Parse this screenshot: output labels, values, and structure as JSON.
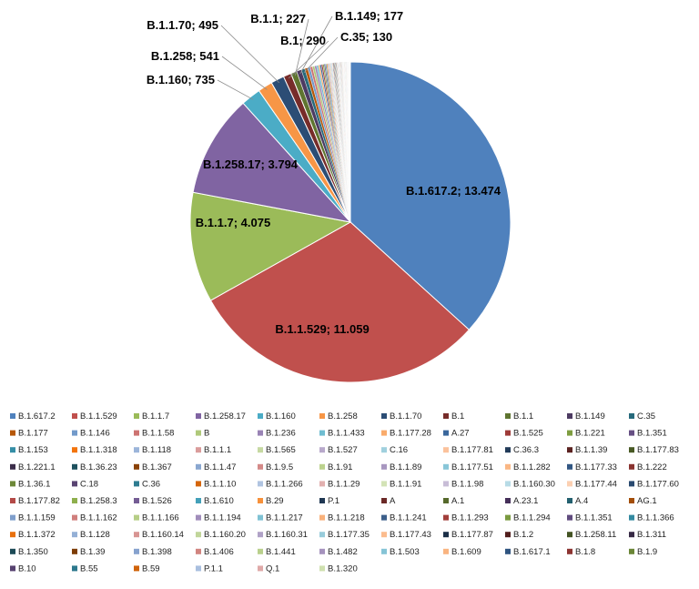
{
  "chart_data": {
    "type": "pie",
    "title": "",
    "legend_position": "bottom",
    "slices": [
      {
        "label": "B.1.617.2",
        "value": 13474,
        "display": "B.1.617.2; 13.474",
        "color": "#4F81BD"
      },
      {
        "label": "B.1.1.529",
        "value": 11059,
        "display": "B.1.1.529; 11.059",
        "color": "#C0504D"
      },
      {
        "label": "B.1.1.7",
        "value": 4075,
        "display": "B.1.1.7; 4.075",
        "color": "#9BBB59"
      },
      {
        "label": "B.1.258.17",
        "value": 3794,
        "display": "B.1.258.17; 3.794",
        "color": "#8064A2"
      },
      {
        "label": "B.1.160",
        "value": 735,
        "display": "B.1.160; 735",
        "color": "#4BACC6"
      },
      {
        "label": "B.1.258",
        "value": 541,
        "display": "B.1.258; 541",
        "color": "#F79646"
      },
      {
        "label": "B.1.1.70",
        "value": 495,
        "display": "B.1.1.70; 495",
        "color": "#2C4D75"
      },
      {
        "label": "B.1",
        "value": 290,
        "display": "B.1; 290",
        "color": "#772C2A"
      },
      {
        "label": "B.1.1",
        "value": 227,
        "display": "B.1.1; 227",
        "color": "#5F7530"
      },
      {
        "label": "B.1.149",
        "value": 177,
        "display": "B.1.149; 177",
        "color": "#4D3B62"
      },
      {
        "label": "C.35",
        "value": 130,
        "display": "C.35; 130",
        "color": "#276A7C"
      },
      {
        "label": "B.1.177",
        "value": 110,
        "display": "",
        "color": "#B65708"
      },
      {
        "label": "B.1.146",
        "value": 95,
        "display": "",
        "color": "#729ACA"
      },
      {
        "label": "B.1.1.58",
        "value": 85,
        "display": "",
        "color": "#CD7371"
      },
      {
        "label": "B",
        "value": 78,
        "display": "",
        "color": "#AFC97A"
      },
      {
        "label": "B.1.236",
        "value": 72,
        "display": "",
        "color": "#9983B5"
      },
      {
        "label": "B.1.1.433",
        "value": 66,
        "display": "",
        "color": "#6FBDD1"
      },
      {
        "label": "B.1.177.28",
        "value": 60,
        "display": "",
        "color": "#F9AB6B"
      },
      {
        "label": "A.27",
        "value": 56,
        "display": "",
        "color": "#3A679C"
      },
      {
        "label": "B.1.525",
        "value": 52,
        "display": "",
        "color": "#9E3B38"
      },
      {
        "label": "B.1.221",
        "value": 48,
        "display": "",
        "color": "#7E9D40"
      },
      {
        "label": "B.1.351",
        "value": 45,
        "display": "",
        "color": "#664F83"
      },
      {
        "label": "B.1.153",
        "value": 42,
        "display": "",
        "color": "#358EA6"
      },
      {
        "label": "B.1.1.318",
        "value": 40,
        "display": "",
        "color": "#F3740C"
      },
      {
        "label": "B.1.118",
        "value": 37,
        "display": "",
        "color": "#9CB5DA"
      },
      {
        "label": "B.1.1.1",
        "value": 35,
        "display": "",
        "color": "#DA9C9B"
      },
      {
        "label": "B.1.565",
        "value": 33,
        "display": "",
        "color": "#C6D9A2"
      },
      {
        "label": "B.1.527",
        "value": 31,
        "display": "",
        "color": "#B8A9CB"
      },
      {
        "label": "C.16",
        "value": 30,
        "display": "",
        "color": "#A0D0DE"
      },
      {
        "label": "B.1.177.81",
        "value": 28,
        "display": "",
        "color": "#FBC29C"
      },
      {
        "label": "C.36.3",
        "value": 27,
        "display": "",
        "color": "#223B59"
      },
      {
        "label": "B.1.1.39",
        "value": 26,
        "display": "",
        "color": "#5B2220"
      },
      {
        "label": "B.1.177.83",
        "value": 25,
        "display": "",
        "color": "#485924"
      },
      {
        "label": "B.1.221.1",
        "value": 24,
        "display": "",
        "color": "#3B2D4A"
      },
      {
        "label": "B.1.36.23",
        "value": 23,
        "display": "",
        "color": "#1E515E"
      },
      {
        "label": "B.1.367",
        "value": 22,
        "display": "",
        "color": "#8A4206"
      },
      {
        "label": "B.1.1.47",
        "value": 21,
        "display": "",
        "color": "#8AA7D0"
      },
      {
        "label": "B.1.9.5",
        "value": 20,
        "display": "",
        "color": "#D48A88"
      },
      {
        "label": "B.1.91",
        "value": 19,
        "display": "",
        "color": "#BCD28E"
      },
      {
        "label": "B.1.1.89",
        "value": 18,
        "display": "",
        "color": "#A897C0"
      },
      {
        "label": "B.1.177.51",
        "value": 18,
        "display": "",
        "color": "#88C6D8"
      },
      {
        "label": "B.1.1.282",
        "value": 17,
        "display": "",
        "color": "#FAB784"
      },
      {
        "label": "B.1.177.33",
        "value": 16,
        "display": "",
        "color": "#325783"
      },
      {
        "label": "B.1.222",
        "value": 16,
        "display": "",
        "color": "#8A3330"
      },
      {
        "label": "B.1.36.1",
        "value": 15,
        "display": "",
        "color": "#6D8838"
      },
      {
        "label": "C.18",
        "value": 15,
        "display": "",
        "color": "#594472"
      },
      {
        "label": "C.36",
        "value": 14,
        "display": "",
        "color": "#2E7C91"
      },
      {
        "label": "B.1.1.10",
        "value": 14,
        "display": "",
        "color": "#D5650A"
      },
      {
        "label": "B.1.1.266",
        "value": 13,
        "display": "",
        "color": "#B0C4E1"
      },
      {
        "label": "B.1.1.29",
        "value": 13,
        "display": "",
        "color": "#E2B0AF"
      },
      {
        "label": "B.1.1.91",
        "value": 12,
        "display": "",
        "color": "#D3E3B6"
      },
      {
        "label": "B.1.1.98",
        "value": 12,
        "display": "",
        "color": "#C8BDD7"
      },
      {
        "label": "B.1.160.30",
        "value": 11,
        "display": "",
        "color": "#B7DBE6"
      },
      {
        "label": "B.1.177.44",
        "value": 11,
        "display": "",
        "color": "#FCD0B2"
      },
      {
        "label": "B.1.177.60",
        "value": 10,
        "display": "",
        "color": "#2A4A70"
      },
      {
        "label": "B.1.177.82",
        "value": 10,
        "display": "",
        "color": "#B34A47"
      },
      {
        "label": "B.1.258.3",
        "value": 10,
        "display": "",
        "color": "#8EAF4D"
      },
      {
        "label": "B.1.526",
        "value": 9,
        "display": "",
        "color": "#745C94"
      },
      {
        "label": "B.1.610",
        "value": 9,
        "display": "",
        "color": "#43A0B9"
      },
      {
        "label": "B.29",
        "value": 9,
        "display": "",
        "color": "#F7913B"
      },
      {
        "label": "P.1",
        "value": 8,
        "display": "",
        "color": "#1F3752"
      },
      {
        "label": "A",
        "value": 8,
        "display": "",
        "color": "#6B2927"
      },
      {
        "label": "A.1",
        "value": 8,
        "display": "",
        "color": "#56692B"
      },
      {
        "label": "A.23.1",
        "value": 7,
        "display": "",
        "color": "#452F59"
      },
      {
        "label": "A.4",
        "value": 7,
        "display": "",
        "color": "#23606F"
      },
      {
        "label": "AG.1",
        "value": 7,
        "display": "",
        "color": "#A34E07"
      },
      {
        "label": "B.1.1.159",
        "value": 6,
        "display": "",
        "color": "#7F9FCC"
      },
      {
        "label": "B.1.1.162",
        "value": 6,
        "display": "",
        "color": "#D07F7D"
      },
      {
        "label": "B.1.1.166",
        "value": 6,
        "display": "",
        "color": "#B6CE86"
      },
      {
        "label": "B.1.1.194",
        "value": 6,
        "display": "",
        "color": "#A18DBB"
      },
      {
        "label": "B.1.1.217",
        "value": 5,
        "display": "",
        "color": "#7FC2D4"
      },
      {
        "label": "B.1.1.218",
        "value": 5,
        "display": "",
        "color": "#F9B17B"
      },
      {
        "label": "B.1.1.241",
        "value": 5,
        "display": "",
        "color": "#3C5F8A"
      },
      {
        "label": "B.1.1.293",
        "value": 5,
        "display": "",
        "color": "#A23E3B"
      },
      {
        "label": "B.1.1.294",
        "value": 5,
        "display": "",
        "color": "#7A9A3F"
      },
      {
        "label": "B.1.1.351",
        "value": 4,
        "display": "",
        "color": "#604B7E"
      },
      {
        "label": "B.1.1.366",
        "value": 4,
        "display": "",
        "color": "#348AA1"
      },
      {
        "label": "B.1.1.372",
        "value": 4,
        "display": "",
        "color": "#E8700C"
      },
      {
        "label": "B.1.128",
        "value": 4,
        "display": "",
        "color": "#94B0D6"
      },
      {
        "label": "B.1.160.14",
        "value": 4,
        "display": "",
        "color": "#D89593"
      },
      {
        "label": "B.1.160.20",
        "value": 4,
        "display": "",
        "color": "#C1D69A"
      },
      {
        "label": "B.1.160.31",
        "value": 3,
        "display": "",
        "color": "#B0A2C7"
      },
      {
        "label": "B.1.177.35",
        "value": 3,
        "display": "",
        "color": "#98CCDB"
      },
      {
        "label": "B.1.177.43",
        "value": 3,
        "display": "",
        "color": "#FBBC8E"
      },
      {
        "label": "B.1.177.87",
        "value": 3,
        "display": "",
        "color": "#1B2F47"
      },
      {
        "label": "B.1.2",
        "value": 3,
        "display": "",
        "color": "#521F1D"
      },
      {
        "label": "B.1.258.11",
        "value": 3,
        "display": "",
        "color": "#435323"
      },
      {
        "label": "B.1.311",
        "value": 3,
        "display": "",
        "color": "#372A45"
      },
      {
        "label": "B.1.350",
        "value": 3,
        "display": "",
        "color": "#1C4A56"
      },
      {
        "label": "B.1.39",
        "value": 2,
        "display": "",
        "color": "#7D3C06"
      },
      {
        "label": "B.1.398",
        "value": 2,
        "display": "",
        "color": "#86A2CE"
      },
      {
        "label": "B.1.406",
        "value": 2,
        "display": "",
        "color": "#D1847F"
      },
      {
        "label": "B.1.441",
        "value": 2,
        "display": "",
        "color": "#B9D08C"
      },
      {
        "label": "B.1.482",
        "value": 2,
        "display": "",
        "color": "#A592BD"
      },
      {
        "label": "B.1.503",
        "value": 2,
        "display": "",
        "color": "#85C4D6"
      },
      {
        "label": "B.1.609",
        "value": 2,
        "display": "",
        "color": "#F9B480"
      },
      {
        "label": "B.1.617.1",
        "value": 2,
        "display": "",
        "color": "#2F5480"
      },
      {
        "label": "B.1.8",
        "value": 2,
        "display": "",
        "color": "#8C3431"
      },
      {
        "label": "B.1.9",
        "value": 2,
        "display": "",
        "color": "#6A8536"
      },
      {
        "label": "B.10",
        "value": 1,
        "display": "",
        "color": "#574270"
      },
      {
        "label": "B.55",
        "value": 1,
        "display": "",
        "color": "#2D788D"
      },
      {
        "label": "B.59",
        "value": 1,
        "display": "",
        "color": "#D0630A"
      },
      {
        "label": "P.1.1",
        "value": 1,
        "display": "",
        "color": "#A9BFDF"
      },
      {
        "label": "Q.1",
        "value": 1,
        "display": "",
        "color": "#DFA9A8"
      },
      {
        "label": "B.1.320",
        "value": 1,
        "display": "",
        "color": "#CFE0AF"
      }
    ]
  }
}
